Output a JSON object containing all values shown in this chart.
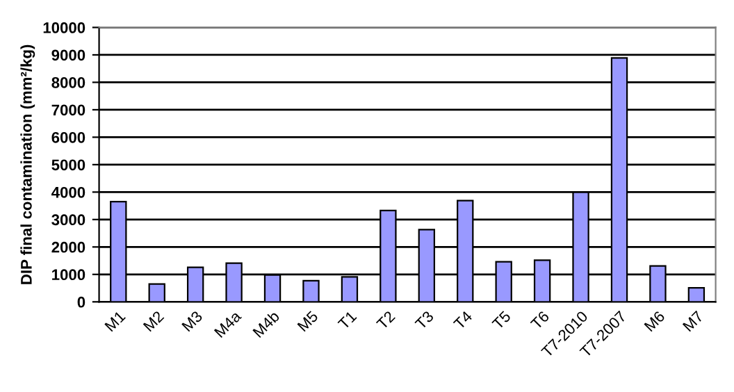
{
  "chart_data": {
    "type": "bar",
    "ylabel": "DIP final contamination (mm²/kg)",
    "categories": [
      "M1",
      "M2",
      "M3",
      "M4a",
      "M4b",
      "M5",
      "T1",
      "T2",
      "T3",
      "T4",
      "T5",
      "T6",
      "T7-2010",
      "T7-2007",
      "M6",
      "M7"
    ],
    "values": [
      3650,
      650,
      1260,
      1410,
      980,
      770,
      910,
      3330,
      2630,
      3690,
      1460,
      1520,
      3990,
      8890,
      1310,
      510
    ],
    "color": "#9999ff",
    "ylim": [
      0,
      10000
    ],
    "yticks": [
      0,
      1000,
      2000,
      3000,
      4000,
      5000,
      6000,
      7000,
      8000,
      9000,
      10000
    ],
    "grid": "y",
    "legend": false
  }
}
